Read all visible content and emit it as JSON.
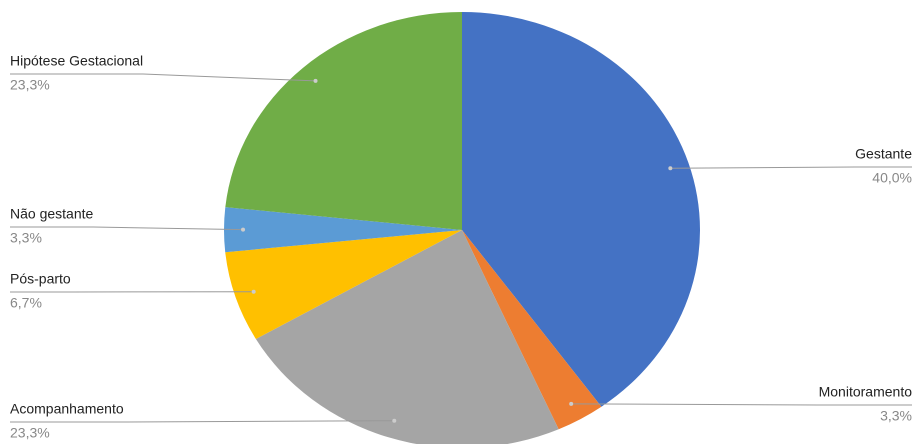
{
  "chart_data": {
    "type": "pie",
    "categories": [
      "Gestante",
      "Monitoramento",
      "Acompanhamento",
      "Pós-parto",
      "Não gestante",
      "Hipótese Gestacional"
    ],
    "values": [
      40.0,
      3.3,
      23.3,
      6.7,
      3.3,
      23.3
    ],
    "value_labels": [
      "40,0%",
      "3,3%",
      "23,3%",
      "6,7%",
      "3,3%",
      "23,3%"
    ],
    "colors": [
      "#4472c4",
      "#ed7d31",
      "#a5a5a5",
      "#ffc000",
      "#5b9bd5",
      "#70ad47"
    ]
  }
}
